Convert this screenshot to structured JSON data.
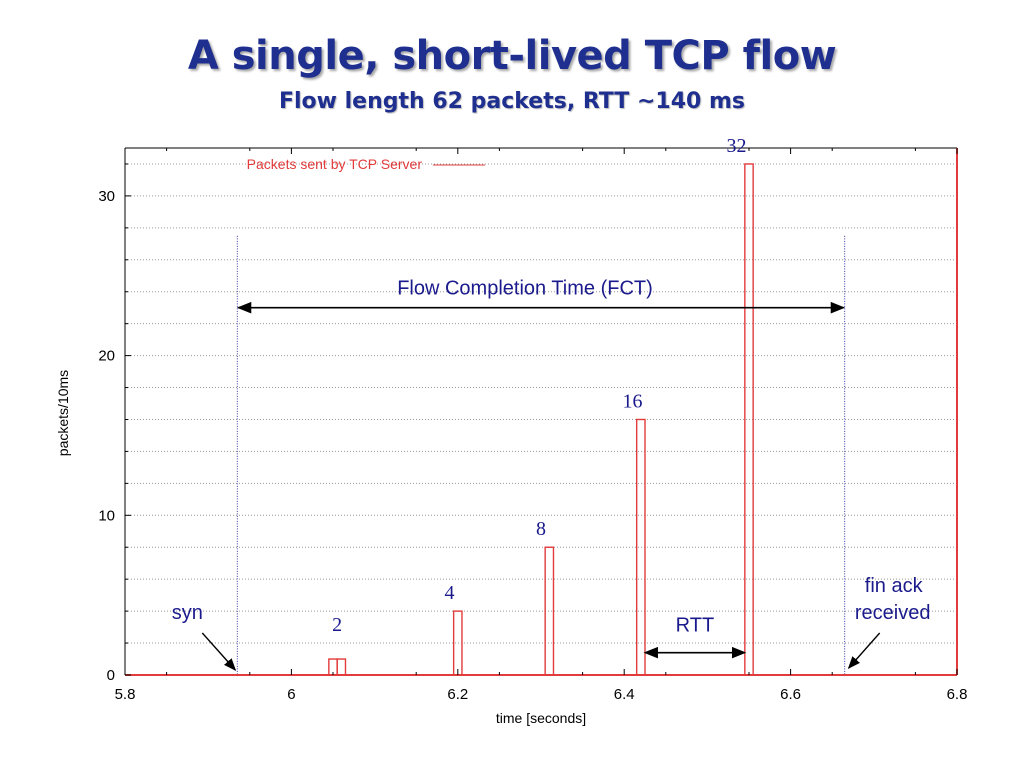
{
  "slide": {
    "title": "A single, short-lived TCP flow",
    "subtitle": "Flow length 62 packets, RTT ~140 ms"
  },
  "colors": {
    "title": "#1f2f8f",
    "series": "#e23b3b",
    "annotation": "#1a1a8c",
    "grid": "#9a9a9a"
  },
  "chart_data": {
    "type": "bar",
    "xlabel": "time [seconds]",
    "ylabel": "packets/10ms",
    "xlim": [
      5.8,
      6.8
    ],
    "ylim": [
      0,
      33
    ],
    "xticks": [
      5.8,
      6.0,
      6.2,
      6.4,
      6.6,
      6.8
    ],
    "xtick_labels": [
      "5.8",
      "6",
      "6.2",
      "6.4",
      "6.6",
      "6.8"
    ],
    "yticks": [
      0,
      10,
      20,
      30
    ],
    "ytick_labels": [
      "0",
      "10",
      "20",
      "30"
    ],
    "grid": true,
    "legend": "top-left",
    "series": [
      {
        "name": "Packets sent by TCP Server",
        "points": [
          {
            "x": 6.05,
            "y": 1
          },
          {
            "x": 6.06,
            "y": 1
          },
          {
            "x": 6.2,
            "y": 4
          },
          {
            "x": 6.31,
            "y": 8
          },
          {
            "x": 6.42,
            "y": 16
          },
          {
            "x": 6.55,
            "y": 32
          }
        ]
      }
    ],
    "bar_value_labels": [
      {
        "x": 6.055,
        "y": 2,
        "text": "2"
      },
      {
        "x": 6.19,
        "y": 4,
        "text": "4"
      },
      {
        "x": 6.3,
        "y": 8,
        "text": "8"
      },
      {
        "x": 6.41,
        "y": 16,
        "text": "16"
      },
      {
        "x": 6.535,
        "y": 32,
        "text": "32"
      }
    ],
    "annotations": {
      "fct_label": "Flow Completion Time (FCT)",
      "fct_start": 5.935,
      "fct_end": 6.665,
      "rtt_label": "RTT",
      "rtt_start": 6.425,
      "rtt_end": 6.545,
      "syn_label": "syn",
      "fin_label_line1": "fin ack",
      "fin_label_line2": "received"
    }
  }
}
